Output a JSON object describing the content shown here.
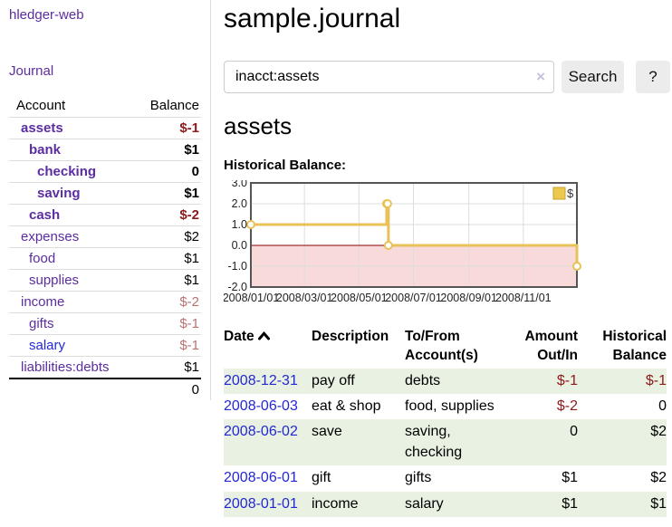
{
  "colors": {
    "link_purple": "#5b2da0",
    "link_blue": "#2328d2",
    "negative_dark": "#8c1a1a",
    "negative_light": "#b97272",
    "row_green": "#e9f2e2",
    "button_gray": "#ececec",
    "chart_gold": "#e8c158"
  },
  "sidebar": {
    "app_title": "hledger-web",
    "journal_link": "Journal",
    "header": {
      "account": "Account",
      "balance": "Balance"
    },
    "accounts": [
      {
        "name": "assets",
        "indent": 1,
        "bold": true,
        "balance": "$-1"
      },
      {
        "name": "bank",
        "indent": 2,
        "bold": true,
        "balance": "$1"
      },
      {
        "name": "checking",
        "indent": 3,
        "bold": true,
        "balance": "0"
      },
      {
        "name": "saving",
        "indent": 3,
        "bold": true,
        "balance": "$1"
      },
      {
        "name": "cash",
        "indent": 2,
        "bold": true,
        "balance": "$-2"
      },
      {
        "name": "expenses",
        "indent": 1,
        "bold": false,
        "balance": "$2"
      },
      {
        "name": "food",
        "indent": 2,
        "bold": false,
        "balance": "$1"
      },
      {
        "name": "supplies",
        "indent": 2,
        "bold": false,
        "balance": "$1"
      },
      {
        "name": "income",
        "indent": 1,
        "bold": false,
        "balance": "$-2"
      },
      {
        "name": "gifts",
        "indent": 2,
        "bold": false,
        "balance": "$-1"
      },
      {
        "name": "salary",
        "indent": 2,
        "bold": false,
        "balance": "$-1",
        "blue": true
      },
      {
        "name": "liabilities:debts",
        "indent": 1,
        "bold": false,
        "balance": "$1"
      }
    ],
    "total": "0"
  },
  "main": {
    "title": "sample.journal",
    "search": {
      "value": "inacct:assets",
      "clear_icon": "×",
      "button": "Search",
      "help_button": "?"
    },
    "section_title": "assets",
    "chart_label": "Historical Balance:"
  },
  "chart_data": {
    "type": "line",
    "step": true,
    "title": "Historical Balance",
    "series": [
      {
        "name": "$",
        "color": "#e8c158",
        "points": [
          [
            "2008-01-01",
            1
          ],
          [
            "2008-06-01",
            2
          ],
          [
            "2008-06-02",
            2
          ],
          [
            "2008-06-03",
            0
          ],
          [
            "2008-12-31",
            -1
          ]
        ]
      }
    ],
    "x_ticks": [
      "2008/01/01",
      "2008/03/01",
      "2008/05/01",
      "2008/07/01",
      "2008/09/01",
      "2008/11/01"
    ],
    "y_ticks": [
      3.0,
      2.0,
      1.0,
      0.0,
      -1.0,
      -2.0
    ],
    "xlim": [
      "2008-01-01",
      "2008-12-31"
    ],
    "ylim": [
      -2.0,
      3.0
    ],
    "grid": true,
    "legend": {
      "label": "$",
      "position": "top-right"
    },
    "negative_region_color": "#f9dada",
    "zero_line_color": "#8b0000",
    "border_color": "#555555",
    "grid_color": "#dddddd"
  },
  "register": {
    "headers": [
      {
        "label": "Date",
        "sort": "asc",
        "align": "left"
      },
      {
        "label": "Description",
        "align": "left"
      },
      {
        "label": "To/From Account(s)",
        "align": "left"
      },
      {
        "label": "Amount Out/In",
        "align": "right"
      },
      {
        "label": "Historical Balance",
        "align": "right"
      }
    ],
    "rows": [
      {
        "date": "2008-12-31",
        "description": "pay off",
        "accounts": "debts",
        "amount": "$-1",
        "balance": "$-1"
      },
      {
        "date": "2008-06-03",
        "description": "eat & shop",
        "accounts": "food, supplies",
        "amount": "$-2",
        "balance": "0"
      },
      {
        "date": "2008-06-02",
        "description": "save",
        "accounts": "saving, checking",
        "amount": "0",
        "balance": "$2"
      },
      {
        "date": "2008-06-01",
        "description": "gift",
        "accounts": "gifts",
        "amount": "$1",
        "balance": "$2"
      },
      {
        "date": "2008-01-01",
        "description": "income",
        "accounts": "salary",
        "amount": "$1",
        "balance": "$1"
      }
    ]
  }
}
